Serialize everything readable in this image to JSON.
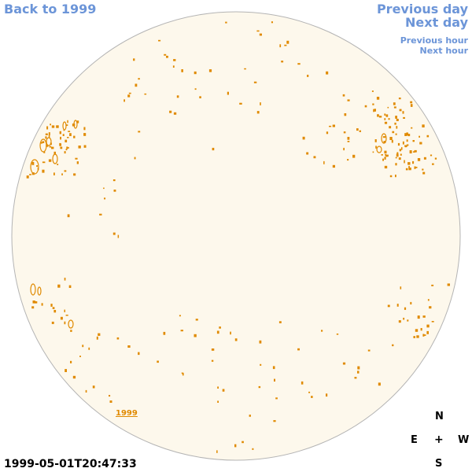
{
  "nav": {
    "back": "Back to 1999",
    "previous_day": "Previous day",
    "next_day": "Next day",
    "previous_hour": "Previous hour",
    "next_hour": "Next hour"
  },
  "timestamp": "1999-05-01T20:47:33",
  "year_marker": "1999",
  "compass": {
    "north": "N",
    "east": "E",
    "west": "W",
    "south": "S",
    "center": "+"
  },
  "colors": {
    "link": "#6c95d8",
    "disk_fill": "#fdf8ec",
    "disk_stroke": "#b4b4b4",
    "contour": "#e08a00"
  }
}
